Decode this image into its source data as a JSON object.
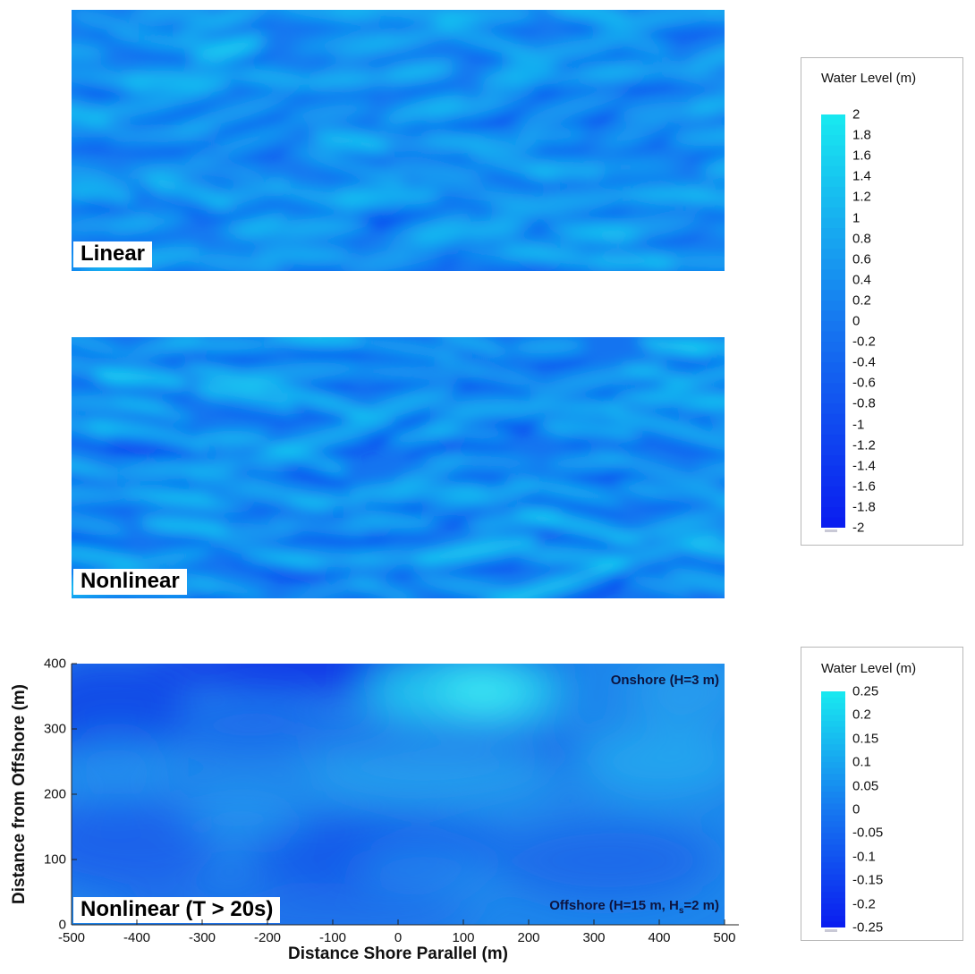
{
  "chart_data": [
    {
      "type": "heatmap",
      "panel_label": "Linear",
      "colorbar_id": "wl1"
    },
    {
      "type": "heatmap",
      "panel_label": "Nonlinear",
      "colorbar_id": "wl1"
    },
    {
      "type": "heatmap",
      "panel_label": "Nonlinear (T > 20s)",
      "colorbar_id": "wl2",
      "xlabel": "Distance Shore Parallel (m)",
      "ylabel": "Distance from Offshore (m)",
      "xlim": [
        -500,
        500
      ],
      "ylim": [
        0,
        400
      ],
      "xticks": [
        "-500",
        "-400",
        "-300",
        "-200",
        "-100",
        "0",
        "100",
        "200",
        "300",
        "400",
        "500"
      ],
      "xtick_values": [
        -500,
        -400,
        -300,
        -200,
        -100,
        0,
        100,
        200,
        300,
        400,
        500
      ],
      "yticks": [
        "0",
        "100",
        "200",
        "300",
        "400"
      ],
      "ytick_values": [
        0,
        100,
        200,
        300,
        400
      ],
      "annotations": {
        "onshore": "Onshore (H=3 m)",
        "offshore_prefix": "Offshore (H=15 m, H",
        "offshore_sub": "s",
        "offshore_suffix": "=2 m)"
      }
    }
  ],
  "colorbars": {
    "wl1": {
      "title": "Water Level (m)",
      "range": [
        -2,
        2
      ],
      "tick_values": [
        2,
        1.8,
        1.6,
        1.4,
        1.2,
        1,
        0.8,
        0.6,
        0.4,
        0.2,
        0,
        -0.2,
        -0.4,
        -0.6,
        -0.8,
        -1,
        -1.2,
        -1.4,
        -1.6,
        -1.8,
        -2
      ],
      "tick_labels": [
        "2",
        "1.8",
        "1.6",
        "1.4",
        "1.2",
        "1",
        "0.8",
        "0.6",
        "0.4",
        "0.2",
        "0",
        "-0.2",
        "-0.4",
        "-0.6",
        "-0.8",
        "-1",
        "-1.2",
        "-1.4",
        "-1.6",
        "-1.8",
        "-2"
      ]
    },
    "wl2": {
      "title": "Water Level (m)",
      "range": [
        -0.25,
        0.25
      ],
      "tick_values": [
        0.25,
        0.2,
        0.15,
        0.1,
        0.05,
        0,
        -0.05,
        -0.1,
        -0.15,
        -0.2,
        -0.25
      ],
      "tick_labels": [
        "0.25",
        "0.2",
        "0.15",
        "0.1",
        "0.05",
        "0",
        "-0.05",
        "-0.1",
        "-0.15",
        "-0.2",
        "-0.25"
      ]
    }
  },
  "colors": {
    "high": "#18eaf0",
    "mid": "#1678f0",
    "low": "#0a1cf0"
  }
}
